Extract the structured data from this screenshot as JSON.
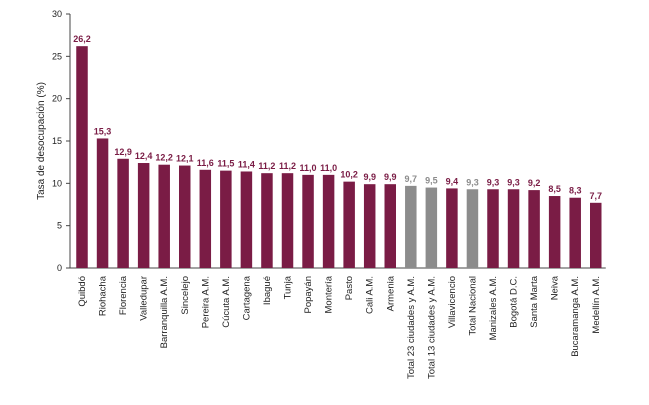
{
  "chart_data": {
    "type": "bar",
    "ylabel": "Tasa de desocupación (%)",
    "xlabel": "",
    "ylim": [
      0,
      30
    ],
    "yticks": [
      "0",
      "5",
      "10",
      "15",
      "20",
      "25",
      "30"
    ],
    "grid": false,
    "categories": [
      "Quibdó",
      "Riohacha",
      "Florencia",
      "Valledupar",
      "Barranquilla A.M.",
      "Sincelejo",
      "Pereira A.M.",
      "Cúcuta A.M.",
      "Cartagena",
      "Ibagué",
      "Tunja",
      "Popayán",
      "Montería",
      "Pasto",
      "Cali A.M.",
      "Armenia",
      "Total 23 ciudades y A.M.",
      "Total 13 ciudades y A.M.",
      "Villavicencio",
      "Total Nacional",
      "Manizales A.M.",
      "Bogotá D.C.",
      "Santa Marta",
      "Neiva",
      "Bucaramanga A.M.",
      "Medellín A.M."
    ],
    "values": [
      26.2,
      15.3,
      12.9,
      12.4,
      12.2,
      12.1,
      11.6,
      11.5,
      11.4,
      11.2,
      11.2,
      11.0,
      11.0,
      10.2,
      9.9,
      9.9,
      9.7,
      9.5,
      9.4,
      9.3,
      9.3,
      9.3,
      9.2,
      8.5,
      8.3,
      7.7
    ],
    "value_labels": [
      "26,2",
      "15,3",
      "12,9",
      "12,4",
      "12,2",
      "12,1",
      "11,6",
      "11,5",
      "11,4",
      "11,2",
      "11,2",
      "11,0",
      "11,0",
      "10,2",
      "9,9",
      "9,9",
      "9,7",
      "9,5",
      "9,4",
      "9,3",
      "9,3",
      "9,3",
      "9,2",
      "8,5",
      "8,3",
      "7,7"
    ],
    "highlighted": [
      "Total 23 ciudades y A.M.",
      "Total 13 ciudades y A.M.",
      "Total Nacional"
    ],
    "colors": {
      "bar": "#7a1c45",
      "highlight": "#8c8c8c",
      "axis": "#444444"
    }
  }
}
